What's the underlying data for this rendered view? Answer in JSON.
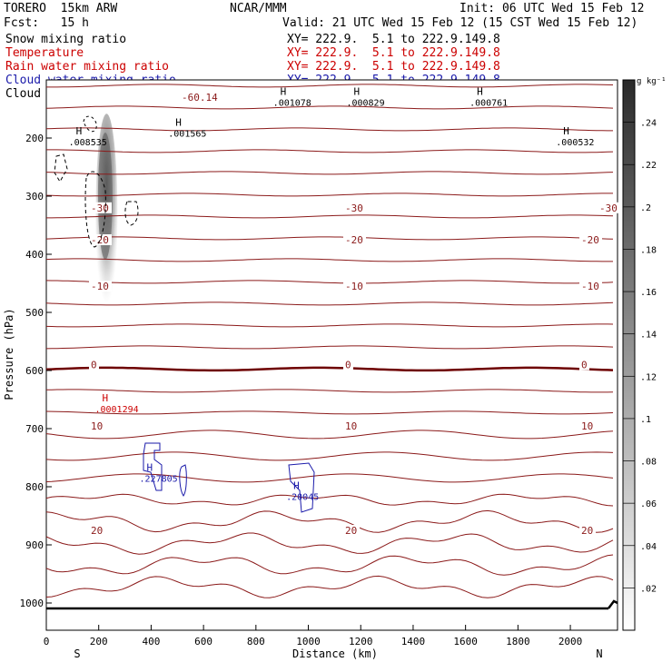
{
  "header": {
    "model": "TORERO  15km ARW",
    "org": "NCAR/MMM",
    "init": "Init: 06 UTC Wed 15 Feb 12",
    "fcst": "Fcst:   15 h",
    "valid": "Valid: 21 UTC Wed 15 Feb 12 (15 CST Wed 15 Feb 12)",
    "legend": [
      {
        "label": "Snow mixing ratio",
        "xy": "XY= 222.9.  5.1 to 222.9.149.8",
        "color": "#000000"
      },
      {
        "label": "Temperature",
        "xy": "XY= 222.9.  5.1 to 222.9.149.8",
        "color": "#cc0000"
      },
      {
        "label": "Rain water mixing ratio",
        "xy": "XY= 222.9.  5.1 to 222.9.149.8",
        "color": "#cc0000"
      },
      {
        "label": "Cloud water mixing ratio",
        "xy": "XY= 222.9.  5.1 to 222.9.149.8",
        "color": "#1a1aaa"
      },
      {
        "label": "Cloud ice mixing ratio",
        "xy": "XY= 222.9.  5.1 to 222.9.149.8",
        "color": "#000000"
      }
    ]
  },
  "chart_data": {
    "type": "contour cross-section",
    "xlabel": "Distance (km)",
    "ylabel": "Pressure (hPa)",
    "xlim": [
      0,
      2180
    ],
    "ylim": [
      1050,
      100
    ],
    "x_ticks": [
      0,
      200,
      400,
      600,
      800,
      1000,
      1200,
      1400,
      1600,
      1800,
      2000
    ],
    "y_ticks": [
      200,
      300,
      400,
      500,
      600,
      700,
      800,
      900,
      1000
    ],
    "x_end_labels": {
      "left": "S",
      "right": "N"
    },
    "colorbar": {
      "unit": "g kg⁻¹",
      "ticks": [
        ".02",
        ".04",
        ".06",
        ".08",
        ".1",
        ".12",
        ".14",
        ".16",
        ".18",
        ".2",
        ".22",
        ".24"
      ],
      "values": [
        0.02,
        0.04,
        0.06,
        0.08,
        0.1,
        0.12,
        0.14,
        0.16,
        0.18,
        0.2,
        0.22,
        0.24
      ],
      "range": [
        0,
        0.26
      ]
    },
    "temperature_contours": [
      {
        "p": 130,
        "label": "-60.14"
      },
      {
        "p": 320,
        "label": "-30"
      },
      {
        "p": 375,
        "label": "-20"
      },
      {
        "p": 455,
        "label": "-10"
      },
      {
        "p": 590,
        "label": "0"
      },
      {
        "p": 695,
        "label": "10"
      },
      {
        "p": 875,
        "label": "20"
      }
    ],
    "extrema_labels": [
      {
        "x": 120,
        "p": 208,
        "label": ".008535",
        "color": "#000000"
      },
      {
        "x": 500,
        "p": 193,
        "label": ".001565",
        "color": "#000000"
      },
      {
        "x": 900,
        "p": 140,
        "label": ".001078",
        "color": "#000000"
      },
      {
        "x": 1180,
        "p": 140,
        "label": ".000829",
        "color": "#000000"
      },
      {
        "x": 1650,
        "p": 140,
        "label": ".000761",
        "color": "#000000"
      },
      {
        "x": 1980,
        "p": 208,
        "label": ".000532",
        "color": "#000000"
      },
      {
        "x": 220,
        "p": 667,
        "label": ".0001294",
        "color": "#cc0000"
      },
      {
        "x": 390,
        "p": 787,
        "label": ".227805",
        "color": "#1a1aaa"
      },
      {
        "x": 950,
        "p": 818,
        "label": ".20045",
        "color": "#1a1aaa"
      }
    ]
  }
}
